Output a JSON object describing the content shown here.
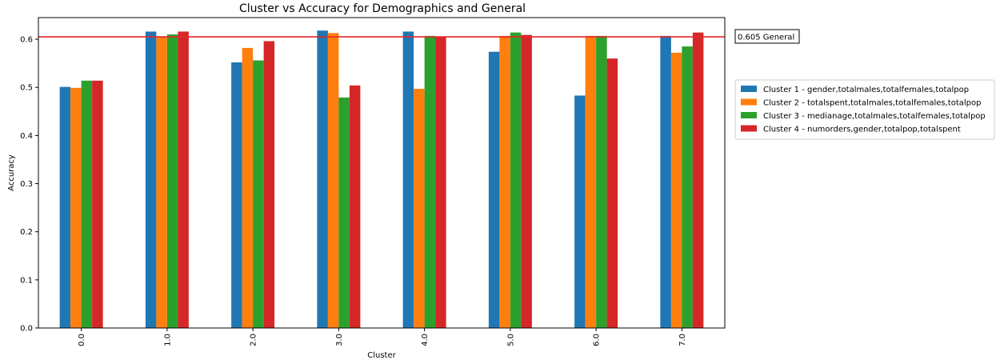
{
  "chart_data": {
    "type": "bar",
    "title": "Cluster vs Accuracy for Demographics and General",
    "xlabel": "Cluster",
    "ylabel": "Accuracy",
    "categories": [
      "0.0",
      "1.0",
      "2.0",
      "3.0",
      "4.0",
      "5.0",
      "6.0",
      "7.0"
    ],
    "ylim": [
      0,
      0.645
    ],
    "yticks": [
      "0.0",
      "0.1",
      "0.2",
      "0.3",
      "0.4",
      "0.5",
      "0.6"
    ],
    "grid": false,
    "legend_position": "right",
    "series": [
      {
        "name": "Cluster 1 - gender,totalmales,totalfemales,totalpop",
        "color": "#1f77b4",
        "values": [
          0.501,
          0.616,
          0.552,
          0.618,
          0.616,
          0.574,
          0.483,
          0.607
        ]
      },
      {
        "name": "Cluster 2 - totalspent,totalmales,totalfemales,totalpop",
        "color": "#ff7f0e",
        "values": [
          0.499,
          0.605,
          0.582,
          0.613,
          0.497,
          0.607,
          0.607,
          0.572
        ]
      },
      {
        "name": "Cluster 3 - medianage,totalmales,totalfemales,totalpop",
        "color": "#2ca02c",
        "values": [
          0.514,
          0.61,
          0.556,
          0.479,
          0.607,
          0.614,
          0.607,
          0.585
        ]
      },
      {
        "name": "Cluster 4 - numorders,gender,totalpop,totalspent",
        "color": "#d62728",
        "values": [
          0.514,
          0.616,
          0.596,
          0.504,
          0.605,
          0.609,
          0.56,
          0.614
        ]
      }
    ],
    "reference_line": {
      "value": 0.605,
      "label": "0.605 General",
      "color": "#e8262b"
    }
  }
}
